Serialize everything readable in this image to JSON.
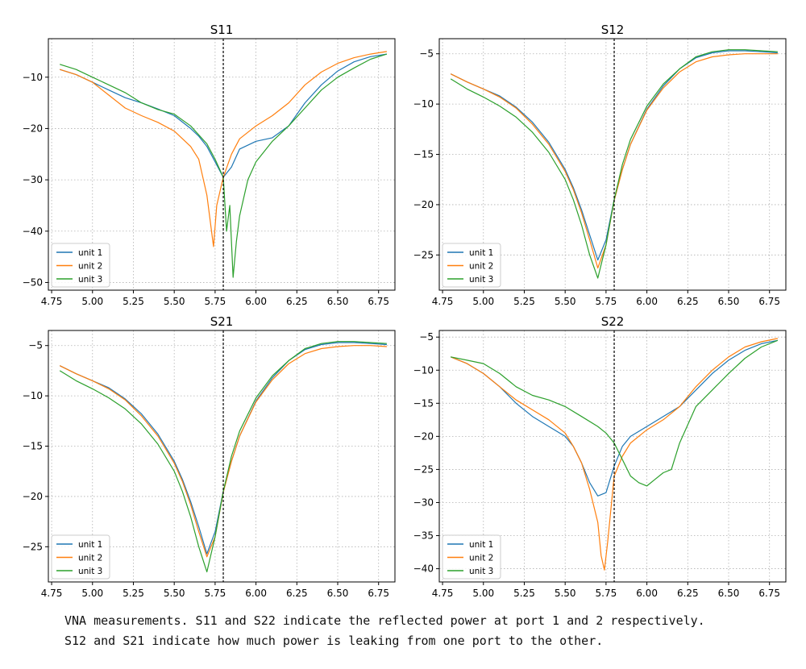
{
  "figure": {
    "caption_lines": [
      "VNA measurements. S11 and S22 indicate the reflected power at port 1 and 2 respectively.",
      "S12 and S21 indicate how much power is leaking from one port to the other."
    ]
  },
  "series_colors": [
    "#1f77b4",
    "#ff7f0e",
    "#2ca02c"
  ],
  "chart_data": [
    {
      "type": "line",
      "title": "S11",
      "xlim": [
        4.73,
        6.85
      ],
      "ylim": [
        -51.5,
        -2.5
      ],
      "xticks": [
        4.75,
        5.0,
        5.25,
        5.5,
        5.75,
        6.0,
        6.25,
        6.5,
        6.75
      ],
      "xtick_labels": [
        "4.75",
        "5.00",
        "5.25",
        "5.50",
        "5.75",
        "6.00",
        "6.25",
        "6.50",
        "6.75"
      ],
      "yticks": [
        -10,
        -20,
        -30,
        -40,
        -50
      ],
      "ytick_labels": [
        "−10",
        "−20",
        "−30",
        "−40",
        "−50"
      ],
      "vline_x": 5.8,
      "grid": true,
      "legend_position": "lower-left",
      "series": [
        {
          "name": "unit 1",
          "x": [
            4.8,
            4.9,
            5.0,
            5.1,
            5.2,
            5.3,
            5.4,
            5.5,
            5.6,
            5.65,
            5.7,
            5.75,
            5.8,
            5.85,
            5.9,
            6.0,
            6.1,
            6.2,
            6.3,
            6.4,
            6.5,
            6.6,
            6.7,
            6.8
          ],
          "y": [
            -8.5,
            -9.5,
            -11,
            -12.5,
            -14,
            -15,
            -16.2,
            -17.5,
            -20,
            -21.5,
            -23.5,
            -26.5,
            -29.5,
            -27.5,
            -24,
            -22.5,
            -21.8,
            -19.5,
            -15,
            -11.5,
            -8.8,
            -7,
            -6,
            -5.5
          ]
        },
        {
          "name": "unit 2",
          "x": [
            4.8,
            4.9,
            5.0,
            5.1,
            5.2,
            5.3,
            5.4,
            5.5,
            5.6,
            5.65,
            5.7,
            5.72,
            5.74,
            5.76,
            5.8,
            5.85,
            5.9,
            6.0,
            6.1,
            6.2,
            6.3,
            6.4,
            6.5,
            6.6,
            6.7,
            6.8
          ],
          "y": [
            -8.5,
            -9.5,
            -11,
            -13.5,
            -16,
            -17.5,
            -18.8,
            -20.5,
            -23.5,
            -26,
            -33,
            -38,
            -43,
            -35,
            -29.5,
            -25,
            -22,
            -19.5,
            -17.5,
            -15,
            -11.5,
            -9,
            -7.3,
            -6.2,
            -5.5,
            -5
          ]
        },
        {
          "name": "unit 3",
          "x": [
            4.8,
            4.9,
            5.0,
            5.1,
            5.2,
            5.3,
            5.4,
            5.5,
            5.6,
            5.7,
            5.75,
            5.8,
            5.82,
            5.84,
            5.86,
            5.88,
            5.9,
            5.95,
            6.0,
            6.1,
            6.2,
            6.3,
            6.4,
            6.5,
            6.6,
            6.7,
            6.8
          ],
          "y": [
            -7.5,
            -8.5,
            -10,
            -11.5,
            -13,
            -15,
            -16.3,
            -17.2,
            -19.5,
            -23,
            -26,
            -29.5,
            -40,
            -35,
            -49,
            -42,
            -37,
            -30,
            -26.5,
            -22.5,
            -19.5,
            -16,
            -12.5,
            -10,
            -8.2,
            -6.5,
            -5.5
          ]
        }
      ]
    },
    {
      "type": "line",
      "title": "S12",
      "xlim": [
        4.73,
        6.85
      ],
      "ylim": [
        -28.5,
        -3.5
      ],
      "xticks": [
        4.75,
        5.0,
        5.25,
        5.5,
        5.75,
        6.0,
        6.25,
        6.5,
        6.75
      ],
      "xtick_labels": [
        "4.75",
        "5.00",
        "5.25",
        "5.50",
        "5.75",
        "6.00",
        "6.25",
        "6.50",
        "6.75"
      ],
      "yticks": [
        -5,
        -10,
        -15,
        -20,
        -25
      ],
      "ytick_labels": [
        "−5",
        "−10",
        "−15",
        "−20",
        "−25"
      ],
      "vline_x": 5.8,
      "grid": true,
      "legend_position": "lower-left",
      "series": [
        {
          "name": "unit 1",
          "x": [
            4.8,
            4.9,
            5.0,
            5.1,
            5.2,
            5.3,
            5.4,
            5.5,
            5.55,
            5.6,
            5.65,
            5.7,
            5.75,
            5.8,
            5.85,
            5.9,
            6.0,
            6.1,
            6.2,
            6.3,
            6.4,
            6.5,
            6.6,
            6.7,
            6.8
          ],
          "y": [
            -7,
            -7.8,
            -8.5,
            -9.2,
            -10.3,
            -11.8,
            -13.8,
            -16.5,
            -18.3,
            -20.5,
            -23,
            -25.5,
            -23.5,
            -19.5,
            -16.5,
            -14,
            -10.5,
            -8.2,
            -6.5,
            -5.4,
            -4.9,
            -4.7,
            -4.7,
            -4.8,
            -4.9
          ]
        },
        {
          "name": "unit 2",
          "x": [
            4.8,
            4.9,
            5.0,
            5.1,
            5.2,
            5.3,
            5.4,
            5.5,
            5.55,
            5.6,
            5.65,
            5.7,
            5.75,
            5.8,
            5.85,
            5.9,
            6.0,
            6.1,
            6.2,
            6.3,
            6.4,
            6.5,
            6.6,
            6.7,
            6.8
          ],
          "y": [
            -7,
            -7.8,
            -8.5,
            -9.3,
            -10.4,
            -12,
            -14,
            -16.7,
            -18.5,
            -20.8,
            -23.5,
            -26.3,
            -24,
            -19.6,
            -16.5,
            -14,
            -10.6,
            -8.4,
            -6.8,
            -5.8,
            -5.3,
            -5.1,
            -5,
            -5,
            -5
          ]
        },
        {
          "name": "unit 3",
          "x": [
            4.8,
            4.9,
            5.0,
            5.1,
            5.2,
            5.3,
            5.4,
            5.5,
            5.55,
            5.6,
            5.65,
            5.7,
            5.75,
            5.8,
            5.85,
            5.9,
            6.0,
            6.1,
            6.2,
            6.3,
            6.4,
            6.5,
            6.6,
            6.7,
            6.8
          ],
          "y": [
            -7.5,
            -8.5,
            -9.3,
            -10.2,
            -11.3,
            -12.8,
            -14.8,
            -17.5,
            -19.5,
            -22,
            -25,
            -27.3,
            -24,
            -19.5,
            -16,
            -13.5,
            -10.2,
            -8,
            -6.5,
            -5.3,
            -4.8,
            -4.6,
            -4.6,
            -4.7,
            -4.8
          ]
        }
      ]
    },
    {
      "type": "line",
      "title": "S21",
      "xlim": [
        4.73,
        6.85
      ],
      "ylim": [
        -28.5,
        -3.5
      ],
      "xticks": [
        4.75,
        5.0,
        5.25,
        5.5,
        5.75,
        6.0,
        6.25,
        6.5,
        6.75
      ],
      "xtick_labels": [
        "4.75",
        "5.00",
        "5.25",
        "5.50",
        "5.75",
        "6.00",
        "6.25",
        "6.50",
        "6.75"
      ],
      "yticks": [
        -5,
        -10,
        -15,
        -20,
        -25
      ],
      "ytick_labels": [
        "−5",
        "−10",
        "−15",
        "−20",
        "−25"
      ],
      "vline_x": 5.8,
      "grid": true,
      "legend_position": "lower-left",
      "series": [
        {
          "name": "unit 1",
          "x": [
            4.8,
            4.9,
            5.0,
            5.1,
            5.2,
            5.3,
            5.4,
            5.5,
            5.55,
            5.6,
            5.65,
            5.7,
            5.75,
            5.8,
            5.85,
            5.9,
            6.0,
            6.1,
            6.2,
            6.3,
            6.4,
            6.5,
            6.6,
            6.7,
            6.8
          ],
          "y": [
            -7,
            -7.8,
            -8.5,
            -9.2,
            -10.3,
            -11.8,
            -13.8,
            -16.5,
            -18.3,
            -20.5,
            -23,
            -25.7,
            -23.5,
            -19.5,
            -16.5,
            -14,
            -10.5,
            -8.2,
            -6.5,
            -5.4,
            -4.9,
            -4.7,
            -4.7,
            -4.8,
            -4.9
          ]
        },
        {
          "name": "unit 2",
          "x": [
            4.8,
            4.9,
            5.0,
            5.1,
            5.2,
            5.3,
            5.4,
            5.5,
            5.55,
            5.6,
            5.65,
            5.7,
            5.75,
            5.8,
            5.85,
            5.9,
            6.0,
            6.1,
            6.2,
            6.3,
            6.4,
            6.5,
            6.6,
            6.7,
            6.8
          ],
          "y": [
            -7,
            -7.8,
            -8.5,
            -9.3,
            -10.4,
            -12,
            -14,
            -16.7,
            -18.5,
            -20.8,
            -23.5,
            -26,
            -24,
            -19.6,
            -16.5,
            -14,
            -10.6,
            -8.4,
            -6.8,
            -5.8,
            -5.3,
            -5.1,
            -5,
            -5,
            -5.1
          ]
        },
        {
          "name": "unit 3",
          "x": [
            4.8,
            4.9,
            5.0,
            5.1,
            5.2,
            5.3,
            5.4,
            5.5,
            5.55,
            5.6,
            5.65,
            5.7,
            5.75,
            5.8,
            5.85,
            5.9,
            6.0,
            6.1,
            6.2,
            6.3,
            6.4,
            6.5,
            6.6,
            6.7,
            6.8
          ],
          "y": [
            -7.5,
            -8.5,
            -9.3,
            -10.2,
            -11.3,
            -12.8,
            -14.8,
            -17.5,
            -19.5,
            -22,
            -25,
            -27.5,
            -24,
            -19.5,
            -16,
            -13.5,
            -10.2,
            -8,
            -6.5,
            -5.3,
            -4.8,
            -4.6,
            -4.6,
            -4.7,
            -4.8
          ]
        }
      ]
    },
    {
      "type": "line",
      "title": "S22",
      "xlim": [
        4.73,
        6.85
      ],
      "ylim": [
        -42,
        -4
      ],
      "xticks": [
        4.75,
        5.0,
        5.25,
        5.5,
        5.75,
        6.0,
        6.25,
        6.5,
        6.75
      ],
      "xtick_labels": [
        "4.75",
        "5.00",
        "5.25",
        "5.50",
        "5.75",
        "6.00",
        "6.25",
        "6.50",
        "6.75"
      ],
      "yticks": [
        -5,
        -10,
        -15,
        -20,
        -25,
        -30,
        -35,
        -40
      ],
      "ytick_labels": [
        "−5",
        "−10",
        "−15",
        "−20",
        "−25",
        "−30",
        "−35",
        "−40"
      ],
      "vline_x": 5.8,
      "grid": true,
      "legend_position": "lower-left",
      "series": [
        {
          "name": "unit 1",
          "x": [
            4.8,
            4.9,
            5.0,
            5.1,
            5.2,
            5.3,
            5.4,
            5.5,
            5.55,
            5.6,
            5.65,
            5.7,
            5.75,
            5.8,
            5.85,
            5.9,
            6.0,
            6.1,
            6.2,
            6.3,
            6.4,
            6.5,
            6.6,
            6.7,
            6.8
          ],
          "y": [
            -8,
            -9,
            -10.5,
            -12.5,
            -15,
            -17,
            -18.5,
            -20,
            -21.5,
            -24,
            -27,
            -29,
            -28.5,
            -24.5,
            -21.5,
            -20,
            -18.5,
            -17,
            -15.5,
            -13,
            -10.5,
            -8.5,
            -7,
            -6,
            -5.5
          ]
        },
        {
          "name": "unit 2",
          "x": [
            4.8,
            4.9,
            5.0,
            5.1,
            5.2,
            5.3,
            5.4,
            5.5,
            5.55,
            5.6,
            5.65,
            5.7,
            5.72,
            5.74,
            5.76,
            5.8,
            5.85,
            5.9,
            6.0,
            6.1,
            6.2,
            6.3,
            6.4,
            6.5,
            6.6,
            6.7,
            6.8
          ],
          "y": [
            -8,
            -9,
            -10.5,
            -12.5,
            -14.5,
            -16,
            -17.5,
            -19.5,
            -21.5,
            -24,
            -28,
            -33,
            -38,
            -40.2,
            -36,
            -26,
            -23,
            -21,
            -19,
            -17.5,
            -15.5,
            -12.5,
            -10,
            -8,
            -6.5,
            -5.7,
            -5.2
          ]
        },
        {
          "name": "unit 3",
          "x": [
            4.8,
            4.9,
            5.0,
            5.1,
            5.2,
            5.3,
            5.4,
            5.5,
            5.6,
            5.7,
            5.75,
            5.8,
            5.85,
            5.9,
            5.95,
            6.0,
            6.05,
            6.1,
            6.15,
            6.2,
            6.3,
            6.4,
            6.5,
            6.6,
            6.7,
            6.8
          ],
          "y": [
            -8,
            -8.5,
            -9,
            -10.5,
            -12.5,
            -13.8,
            -14.5,
            -15.5,
            -17,
            -18.5,
            -19.5,
            -21,
            -23.5,
            -26,
            -27,
            -27.5,
            -26.5,
            -25.5,
            -25,
            -21,
            -15.5,
            -13,
            -10.5,
            -8.2,
            -6.5,
            -5.5
          ]
        }
      ]
    }
  ]
}
